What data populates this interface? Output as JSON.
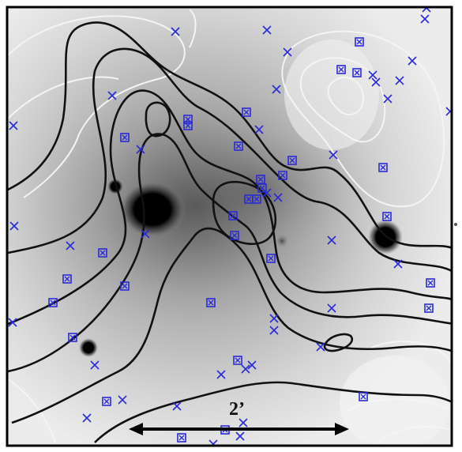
{
  "figure": {
    "scale_bar": {
      "label": "2’"
    },
    "colors": {
      "black_contours": "#111111",
      "white_contours": "#f4f4f4",
      "markers": "#2a2ad8",
      "frame": "#000000"
    },
    "marker_kinds": [
      "boxed-cross",
      "cross"
    ]
  }
}
